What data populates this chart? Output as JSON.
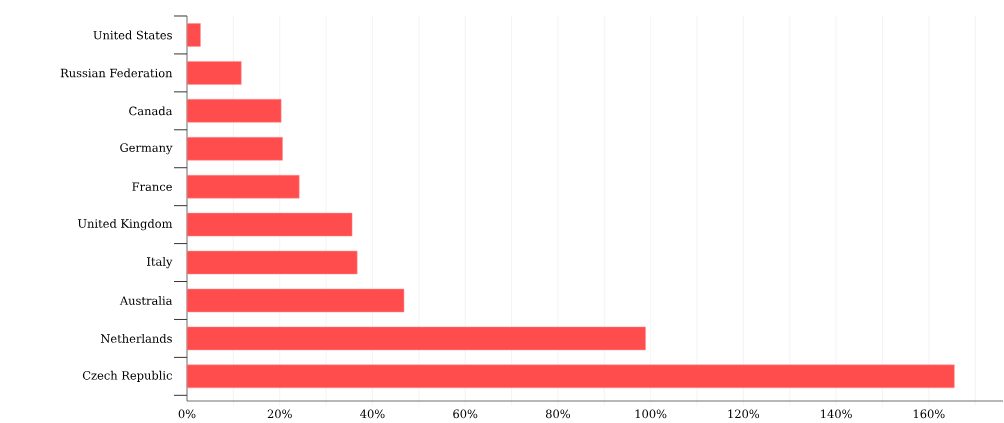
{
  "chart_data": {
    "type": "bar",
    "orientation": "horizontal",
    "categories": [
      "United States",
      "Russian Federation",
      "Canada",
      "Germany",
      "France",
      "United Kingdom",
      "Italy",
      "Australia",
      "Netherlands",
      "Czech Republic"
    ],
    "values": [
      2.9,
      11.7,
      20.3,
      20.6,
      24.2,
      35.6,
      36.7,
      46.8,
      98.9,
      165.5
    ],
    "color": "#ff4d4d",
    "xlim": [
      0,
      176
    ],
    "xticks": [
      {
        "value": 0,
        "label": "0%"
      },
      {
        "value": 10,
        "label": null
      },
      {
        "value": 20,
        "label": "20%"
      },
      {
        "value": 30,
        "label": null
      },
      {
        "value": 40,
        "label": "40%"
      },
      {
        "value": 50,
        "label": null
      },
      {
        "value": 60,
        "label": "60%"
      },
      {
        "value": 70,
        "label": null
      },
      {
        "value": 80,
        "label": "80%"
      },
      {
        "value": 90,
        "label": null
      },
      {
        "value": 100,
        "label": "100%"
      },
      {
        "value": 110,
        "label": null
      },
      {
        "value": 120,
        "label": "120%"
      },
      {
        "value": 130,
        "label": null
      },
      {
        "value": 140,
        "label": "140%"
      },
      {
        "value": 150,
        "label": null
      },
      {
        "value": 160,
        "label": "160%"
      },
      {
        "value": 170,
        "label": null
      }
    ],
    "grid": "x"
  }
}
